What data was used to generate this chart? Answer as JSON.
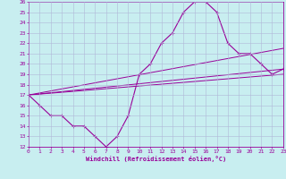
{
  "xlabel": "Windchill (Refroidissement éolien,°C)",
  "xlim": [
    0,
    23
  ],
  "ylim": [
    12,
    26
  ],
  "xticks": [
    0,
    1,
    2,
    3,
    4,
    5,
    6,
    7,
    8,
    9,
    10,
    11,
    12,
    13,
    14,
    15,
    16,
    17,
    18,
    19,
    20,
    21,
    22,
    23
  ],
  "yticks": [
    12,
    13,
    14,
    15,
    16,
    17,
    18,
    19,
    20,
    21,
    22,
    23,
    24,
    25,
    26
  ],
  "line_color": "#990099",
  "bg_color": "#c8eef0",
  "grid_color": "#b0b8d8",
  "series": [
    {
      "x": [
        0,
        1,
        2,
        3,
        4,
        5,
        6,
        7,
        8,
        9,
        10,
        11,
        12,
        13,
        14,
        15,
        16,
        17,
        18,
        19,
        20,
        21,
        22,
        23
      ],
      "y": [
        17,
        16,
        15,
        15,
        14,
        14,
        13,
        12,
        13,
        15,
        19,
        20,
        22,
        23,
        25,
        26,
        26,
        25,
        22,
        21,
        21,
        20,
        19,
        19.5
      ]
    },
    {
      "x": [
        0,
        23
      ],
      "y": [
        17,
        21.5
      ]
    },
    {
      "x": [
        0,
        23
      ],
      "y": [
        17,
        19.5
      ]
    },
    {
      "x": [
        0,
        23
      ],
      "y": [
        17,
        19.0
      ]
    }
  ]
}
